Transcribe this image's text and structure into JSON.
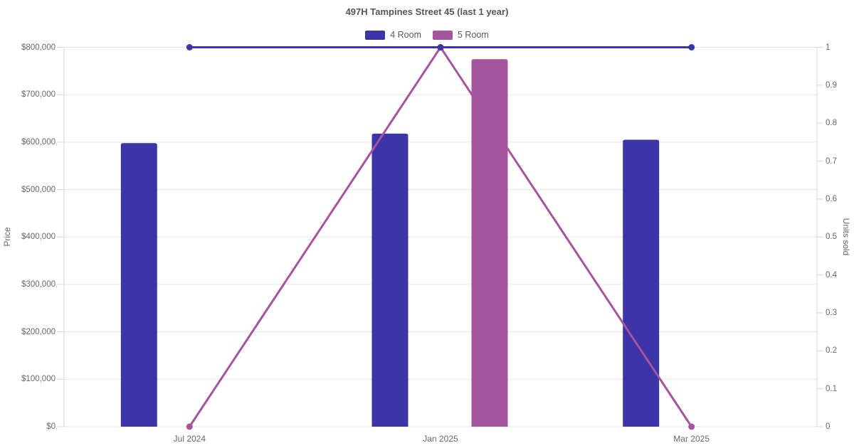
{
  "chart_data": {
    "type": "bar+line",
    "title": "497H Tampines Street 45 (last 1 year)",
    "categories": [
      "Jul 2024",
      "Jan 2025",
      "Mar 2025"
    ],
    "legend": {
      "position": "top",
      "items": [
        {
          "label": "4 Room",
          "color": "#3c35a8"
        },
        {
          "label": "5 Room",
          "color": "#a5549e"
        }
      ]
    },
    "bar_series": [
      {
        "name": "4 Room",
        "axis": "left",
        "color": "#3c35a8",
        "values": [
          598000,
          618000,
          605000
        ]
      },
      {
        "name": "5 Room",
        "axis": "left",
        "color": "#a5549e",
        "values": [
          null,
          775000,
          null
        ]
      }
    ],
    "line_series": [
      {
        "name": "4 Room",
        "axis": "right",
        "color": "#3c35a8",
        "values": [
          1,
          1,
          1
        ]
      },
      {
        "name": "5 Room",
        "axis": "right",
        "color": "#a5549e",
        "values": [
          0,
          1,
          0
        ]
      }
    ],
    "y_left": {
      "label": "Price",
      "min": 0,
      "max": 800000,
      "tick_step": 100000,
      "tick_labels": [
        "$0",
        "$100,000",
        "$200,000",
        "$300,000",
        "$400,000",
        "$500,000",
        "$600,000",
        "$700,000",
        "$800,000"
      ]
    },
    "y_right": {
      "label": "Units sold",
      "min": 0,
      "max": 1,
      "tick_step": 0.1,
      "tick_labels": [
        "0",
        "0.1",
        "0.2",
        "0.3",
        "0.4",
        "0.5",
        "0.6",
        "0.7",
        "0.8",
        "0.9",
        "1"
      ]
    },
    "grid": {
      "horizontal": true,
      "vertical": false
    },
    "colors": {
      "gridline": "#e7e7e7",
      "axis_border": "#d9d9d9",
      "text": "#696969",
      "title": "#565656"
    }
  }
}
